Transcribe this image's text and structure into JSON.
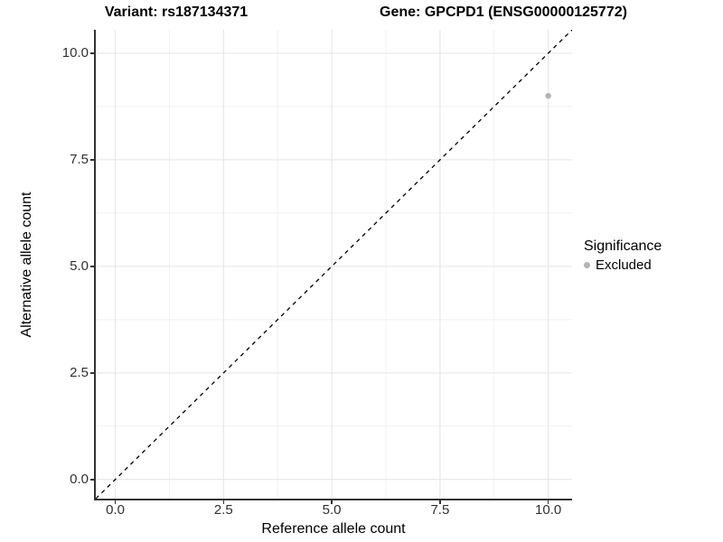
{
  "chart_data": {
    "type": "scatter",
    "title_left": "Variant: rs187134371",
    "title_right": "Gene: GPCPD1 (ENSG00000125772)",
    "xlabel": "Reference allele count",
    "ylabel": "Alternative allele count",
    "x_tick_labels": [
      "0.0",
      "2.5",
      "5.0",
      "7.5",
      "10.0"
    ],
    "y_tick_labels": [
      "0.0",
      "2.5",
      "5.0",
      "7.5",
      "10.0"
    ],
    "xlim": [
      -0.45,
      10.55
    ],
    "ylim": [
      -0.45,
      10.55
    ],
    "grid": true,
    "points": [
      {
        "x": 10,
        "y": 9,
        "significance": "Excluded",
        "color": "#b3b3b3"
      }
    ],
    "identity_line": {
      "style": "dashed",
      "color": "#000000",
      "from_xy": [
        -0.45,
        -0.45
      ],
      "to_xy": [
        10.55,
        10.55
      ]
    },
    "legend": {
      "title": "Significance",
      "position": "right",
      "items": [
        {
          "label": "Excluded",
          "color": "#b3b3b3"
        }
      ]
    }
  }
}
